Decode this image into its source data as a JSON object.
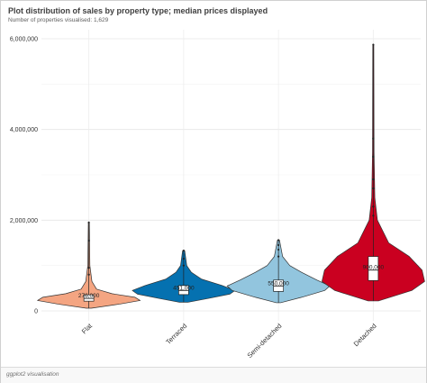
{
  "header": {
    "title": "Plot distribution of sales by property type; median prices displayed",
    "subtitle": "Number of properties visualised: 1,629"
  },
  "footer": {
    "label": "ggplot2 visualisation"
  },
  "chart_data": {
    "type": "violin",
    "title": "Plot distribution of sales by property type; median prices displayed",
    "subtitle": "Number of properties visualised: 1,629",
    "xlabel": "",
    "ylabel": "",
    "ylim": [
      0,
      6000000
    ],
    "y_ticks": [
      0,
      2000000,
      4000000,
      6000000
    ],
    "y_tick_labels": [
      "0",
      "2,000,000",
      "4,000,000",
      "6,000,000"
    ],
    "grid": true,
    "categories": [
      "Flat",
      "Terraced",
      "Semi-detached",
      "Detached"
    ],
    "series": [
      {
        "category": "Flat",
        "color": "#F4A582",
        "median_label": "276,000",
        "median": 276000,
        "min": 60000,
        "max": 1950000,
        "q1": 215000,
        "q3": 355000,
        "density": [
          [
            60000,
            0.05
          ],
          [
            150000,
            0.6
          ],
          [
            230000,
            1.0
          ],
          [
            300000,
            0.9
          ],
          [
            380000,
            0.45
          ],
          [
            480000,
            0.15
          ],
          [
            650000,
            0.06
          ],
          [
            1000000,
            0.02
          ],
          [
            1950000,
            0.01
          ]
        ],
        "outliers": [
          800000,
          950000,
          1550000,
          1950000
        ]
      },
      {
        "category": "Terraced",
        "color": "#0571B0",
        "median_label": "451,000",
        "median": 451000,
        "min": 190000,
        "max": 1330000,
        "q1": 360000,
        "q3": 560000,
        "density": [
          [
            190000,
            0.08
          ],
          [
            280000,
            0.5
          ],
          [
            370000,
            0.9
          ],
          [
            450000,
            1.0
          ],
          [
            560000,
            0.75
          ],
          [
            700000,
            0.35
          ],
          [
            850000,
            0.15
          ],
          [
            1000000,
            0.06
          ],
          [
            1330000,
            0.02
          ]
        ],
        "outliers": [
          1000000,
          1150000,
          1330000
        ]
      },
      {
        "category": "Semi-detached",
        "color": "#92C5DE",
        "median_label": "550,000",
        "median": 550000,
        "min": 180000,
        "max": 1560000,
        "q1": 430000,
        "q3": 680000,
        "density": [
          [
            180000,
            0.04
          ],
          [
            300000,
            0.45
          ],
          [
            450000,
            0.9
          ],
          [
            550000,
            1.0
          ],
          [
            680000,
            0.75
          ],
          [
            850000,
            0.45
          ],
          [
            1000000,
            0.22
          ],
          [
            1200000,
            0.08
          ],
          [
            1560000,
            0.02
          ]
        ],
        "outliers": [
          1200000,
          1350000,
          1450000,
          1560000
        ]
      },
      {
        "category": "Detached",
        "color": "#CA0020",
        "median_label": "900,000",
        "median": 900000,
        "min": 220000,
        "max": 5870000,
        "q1": 670000,
        "q3": 1200000,
        "density": [
          [
            220000,
            0.1
          ],
          [
            450000,
            0.75
          ],
          [
            650000,
            1.0
          ],
          [
            900000,
            0.95
          ],
          [
            1200000,
            0.7
          ],
          [
            1500000,
            0.3
          ],
          [
            2000000,
            0.08
          ],
          [
            2500000,
            0.03
          ],
          [
            3500000,
            0.015
          ],
          [
            5870000,
            0.01
          ]
        ],
        "outliers": [
          2100000,
          2300000,
          2700000,
          2900000,
          3400000,
          3800000,
          5870000
        ]
      }
    ]
  }
}
